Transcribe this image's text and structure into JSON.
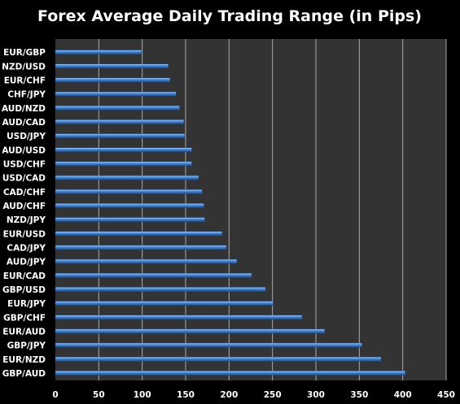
{
  "chart_data": {
    "type": "bar",
    "orientation": "horizontal",
    "title": "Forex Average Daily Trading Range (in Pips)",
    "xlabel": "",
    "ylabel": "",
    "xlim": [
      0,
      450
    ],
    "x_ticks": [
      0,
      50,
      100,
      150,
      200,
      250,
      300,
      350,
      400,
      450
    ],
    "grid": "vertical",
    "legend": "none",
    "categories": [
      "EUR/GBP",
      "NZD/USD",
      "EUR/CHF",
      "CHF/JPY",
      "AUD/NZD",
      "AUD/CAD",
      "USD/JPY",
      "AUD/USD",
      "USD/CHF",
      "USD/CAD",
      "CAD/CHF",
      "AUD/CHF",
      "NZD/JPY",
      "EUR/USD",
      "CAD/JPY",
      "AUD/JPY",
      "EUR/CAD",
      "GBP/USD",
      "EUR/JPY",
      "GBP/CHF",
      "EUR/AUD",
      "GBP/JPY",
      "EUR/NZD",
      "GBP/AUD"
    ],
    "values": [
      99,
      130,
      132,
      139,
      143,
      148,
      149,
      157,
      157,
      165,
      169,
      171,
      172,
      192,
      197,
      209,
      226,
      242,
      251,
      284,
      310,
      353,
      375,
      403
    ]
  },
  "colors": {
    "background": "#000000",
    "plot_area": "#333333",
    "gridline": "#aaaaaa",
    "bar": "#4a90e0",
    "text": "#ffffff"
  }
}
